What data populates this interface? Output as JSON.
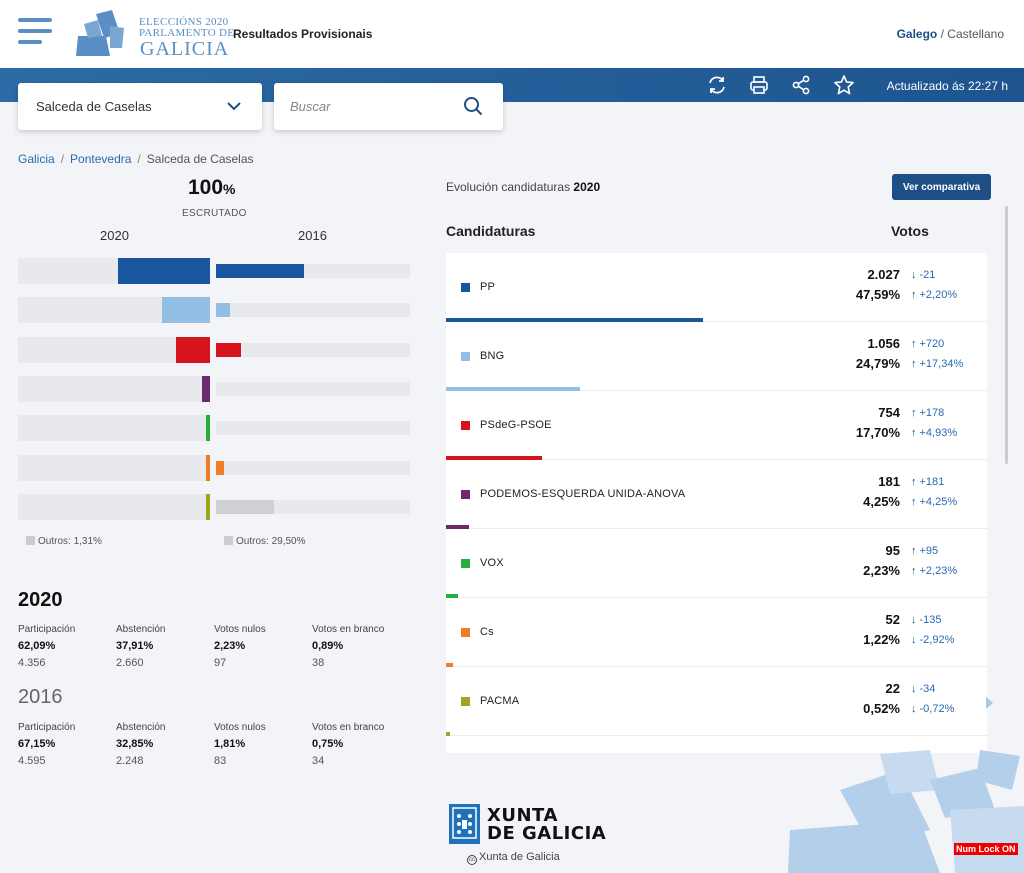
{
  "header": {
    "logo": {
      "line1": "ELECCIÓNS 2020",
      "line2": "PARLAMENTO DE",
      "line3": "GALICIA"
    },
    "app_title": "Resultados Provisionais",
    "lang_active": "Galego",
    "lang_sep": "/",
    "lang_other": "Castellano"
  },
  "toolbar": {
    "updated": "Actualizado ás 22:27 h"
  },
  "location_select": {
    "value": "Salceda de Caselas"
  },
  "search": {
    "placeholder": "Buscar"
  },
  "breadcrumb": [
    "Galicia",
    "Pontevedra",
    "Salceda de Caselas"
  ],
  "scrutiny": {
    "value": "100",
    "unit": "%",
    "label": "ESCRUTADO"
  },
  "comparison": {
    "year_current": "2020",
    "year_previous": "2016",
    "bars_2020": [
      47.59,
      24.79,
      17.7,
      4.25,
      2.23,
      1.22,
      0.52
    ],
    "bars_2016": [
      45.39,
      7.45,
      12.77,
      0,
      0,
      4.14,
      1.24
    ],
    "outros_2020": "Outros: 1,31%",
    "outros_2016": "Outros: 29,50%"
  },
  "stats": {
    "current": {
      "year": "2020",
      "items": [
        {
          "label": "Participación",
          "pct": "62,09%",
          "num": "4.356"
        },
        {
          "label": "Abstención",
          "pct": "37,91%",
          "num": "2.660"
        },
        {
          "label": "Votos nulos",
          "pct": "2,23%",
          "num": "97"
        },
        {
          "label": "Votos en branco",
          "pct": "0,89%",
          "num": "38"
        }
      ]
    },
    "previous": {
      "year": "2016",
      "items": [
        {
          "label": "Participación",
          "pct": "67,15%",
          "num": "4.595"
        },
        {
          "label": "Abstención",
          "pct": "32,85%",
          "num": "2.248"
        },
        {
          "label": "Votos nulos",
          "pct": "1,81%",
          "num": "83"
        },
        {
          "label": "Votos en branco",
          "pct": "0,75%",
          "num": "34"
        }
      ]
    }
  },
  "evolution": {
    "label": "Evolución candidaturas",
    "year": "2020",
    "button": "Ver comparativa"
  },
  "table": {
    "col_candidates": "Candidaturas",
    "col_votes": "Votos",
    "rows": [
      {
        "name": "PP",
        "color": "#1a56a0",
        "votes": "2.027",
        "pct": "47,59%",
        "dv_dir": "down",
        "dv": "-21",
        "dp_dir": "up",
        "dp": "+2,20%",
        "share": 47.59
      },
      {
        "name": "BNG",
        "color": "#93bfe5",
        "votes": "1.056",
        "pct": "24,79%",
        "dv_dir": "up",
        "dv": "+720",
        "dp_dir": "up",
        "dp": "+17,34%",
        "share": 24.79
      },
      {
        "name": "PSdeG-PSOE",
        "color": "#d7141e",
        "votes": "754",
        "pct": "17,70%",
        "dv_dir": "up",
        "dv": "+178",
        "dp_dir": "up",
        "dp": "+4,93%",
        "share": 17.7
      },
      {
        "name": "PODEMOS-ESQUERDA UNIDA-ANOVA",
        "color": "#6a2b6e",
        "votes": "181",
        "pct": "4,25%",
        "dv_dir": "up",
        "dv": "+181",
        "dp_dir": "up",
        "dp": "+4,25%",
        "share": 4.25
      },
      {
        "name": "VOX",
        "color": "#23b03a",
        "votes": "95",
        "pct": "2,23%",
        "dv_dir": "up",
        "dv": "+95",
        "dp_dir": "up",
        "dp": "+2,23%",
        "share": 2.23
      },
      {
        "name": "Cs",
        "color": "#f07c2a",
        "votes": "52",
        "pct": "1,22%",
        "dv_dir": "down",
        "dv": "-135",
        "dp_dir": "down",
        "dp": "-2,92%",
        "share": 1.22
      },
      {
        "name": "PACMA",
        "color": "#a0a521",
        "votes": "22",
        "pct": "0,52%",
        "dv_dir": "down",
        "dv": "-34",
        "dp_dir": "down",
        "dp": "-0,72%",
        "share": 0.52
      }
    ]
  },
  "footer": {
    "brand1": "XUNTA",
    "brand2": "DE GALICIA",
    "credit": "Xunta de Galicia",
    "cc": "cc"
  },
  "status": {
    "numlock": "Num Lock ON"
  }
}
